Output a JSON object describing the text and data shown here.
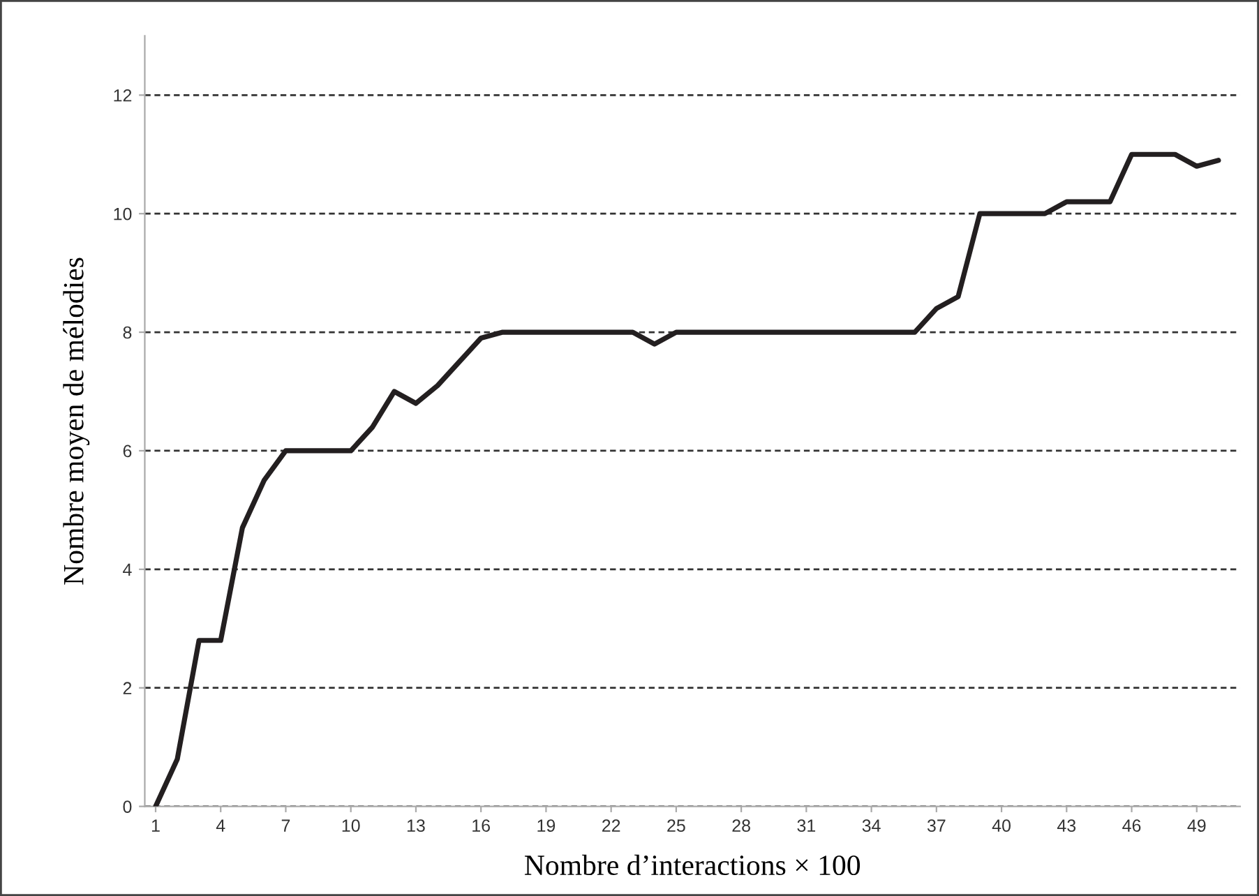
{
  "chart_data": {
    "type": "line",
    "xlabel": "Nombre d’interactions × 100",
    "ylabel": "Nombre moyen de mélodies",
    "x": [
      1,
      2,
      3,
      4,
      5,
      6,
      7,
      8,
      9,
      10,
      11,
      12,
      13,
      14,
      15,
      16,
      17,
      18,
      19,
      20,
      21,
      22,
      23,
      24,
      25,
      26,
      27,
      28,
      29,
      30,
      31,
      32,
      33,
      34,
      35,
      36,
      37,
      38,
      39,
      40,
      41,
      42,
      43,
      44,
      45,
      46,
      47,
      48,
      49,
      50
    ],
    "series": [
      {
        "color": "#231f20",
        "values": [
          0,
          0.8,
          2.8,
          2.8,
          4.7,
          5.5,
          6.0,
          6.0,
          6.0,
          6.0,
          6.4,
          7.0,
          6.8,
          7.1,
          7.5,
          7.9,
          8.0,
          8.0,
          8.0,
          8.0,
          8.0,
          8.0,
          8.0,
          7.8,
          8.0,
          8.0,
          8.0,
          8.0,
          8.0,
          8.0,
          8.0,
          8.0,
          8.0,
          8.0,
          8.0,
          8.0,
          8.4,
          8.6,
          10.0,
          10.0,
          10.0,
          10.0,
          10.2,
          10.2,
          10.2,
          11.0,
          11.0,
          11.0,
          10.8,
          10.9
        ]
      }
    ],
    "xlim": [
      0.5,
      51
    ],
    "xticks": [
      1,
      4,
      7,
      10,
      13,
      16,
      19,
      22,
      25,
      28,
      31,
      34,
      37,
      40,
      43,
      46,
      49
    ],
    "ylim": [
      0,
      13
    ],
    "yticks": [
      0,
      2,
      4,
      6,
      8,
      10,
      12
    ],
    "grid": "y",
    "legend": false,
    "marker": "none",
    "line_style": "solid"
  }
}
